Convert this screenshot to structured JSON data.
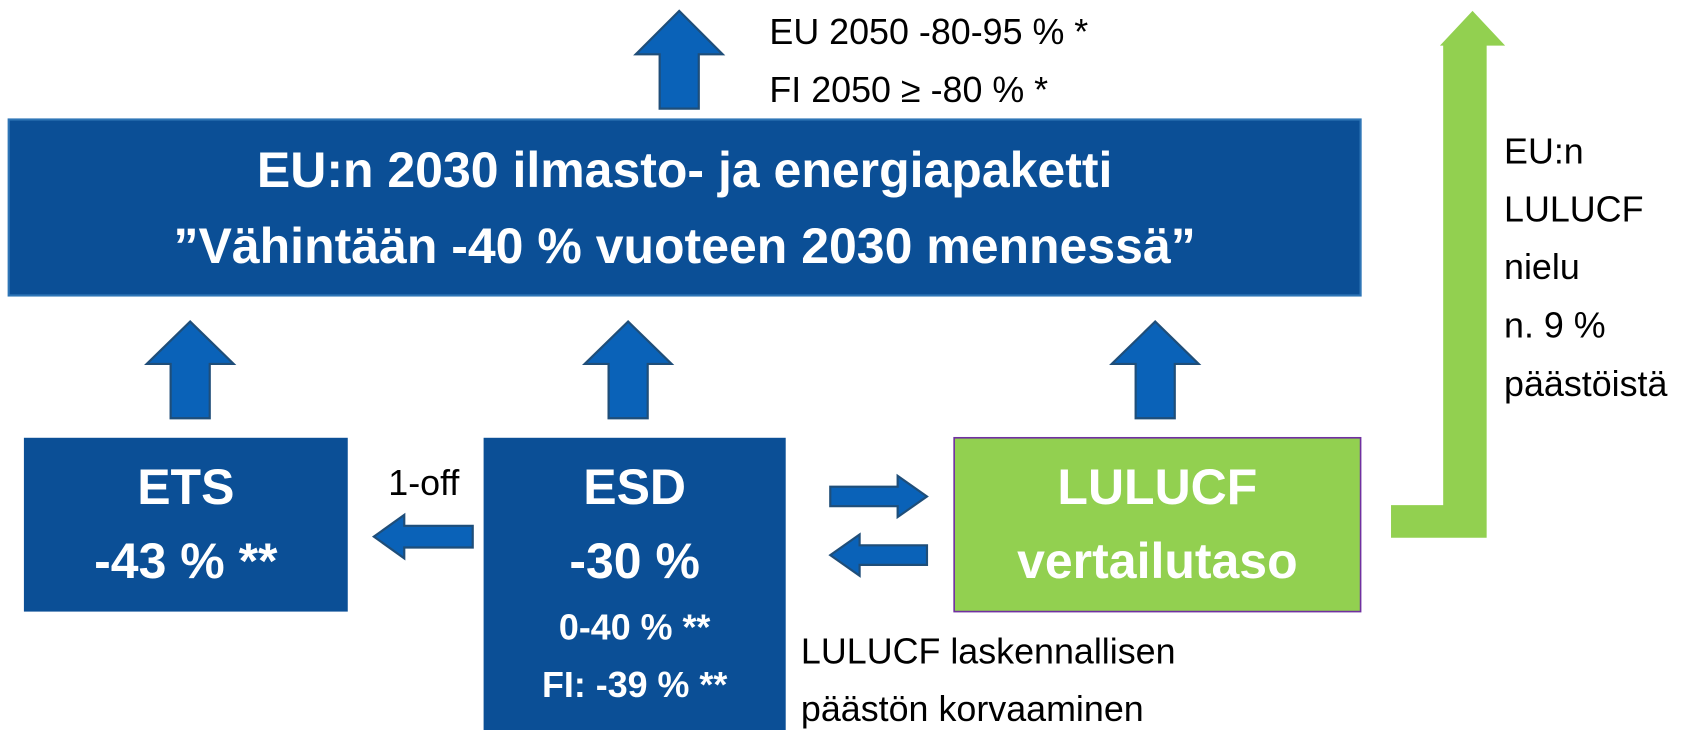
{
  "top_note": [
    "EU 2050 -80-95 % *",
    "FI 2050 ≥ -80 % *"
  ],
  "main_box": {
    "lines": [
      "EU:n 2030 ilmasto- ja energiapaketti",
      "”Vähintään -40 % vuoteen 2030 mennessä”"
    ]
  },
  "ets_box": {
    "lines": [
      "ETS",
      "-43 % **"
    ]
  },
  "one_off": "1-off",
  "esd_box": {
    "lines": [
      "ESD",
      "-30 %"
    ],
    "sub_lines": [
      "0-40 % **",
      "FI: -39 % **"
    ]
  },
  "lulucf_box": {
    "lines": [
      "LULUCF",
      "vertailutaso"
    ]
  },
  "compensation_note": [
    "LULUCF laskennallisen",
    "päästön korvaaminen"
  ],
  "sink_note": [
    "EU:n",
    "LULUCF",
    "nielu",
    "n. 9 %",
    "päästöistä"
  ]
}
